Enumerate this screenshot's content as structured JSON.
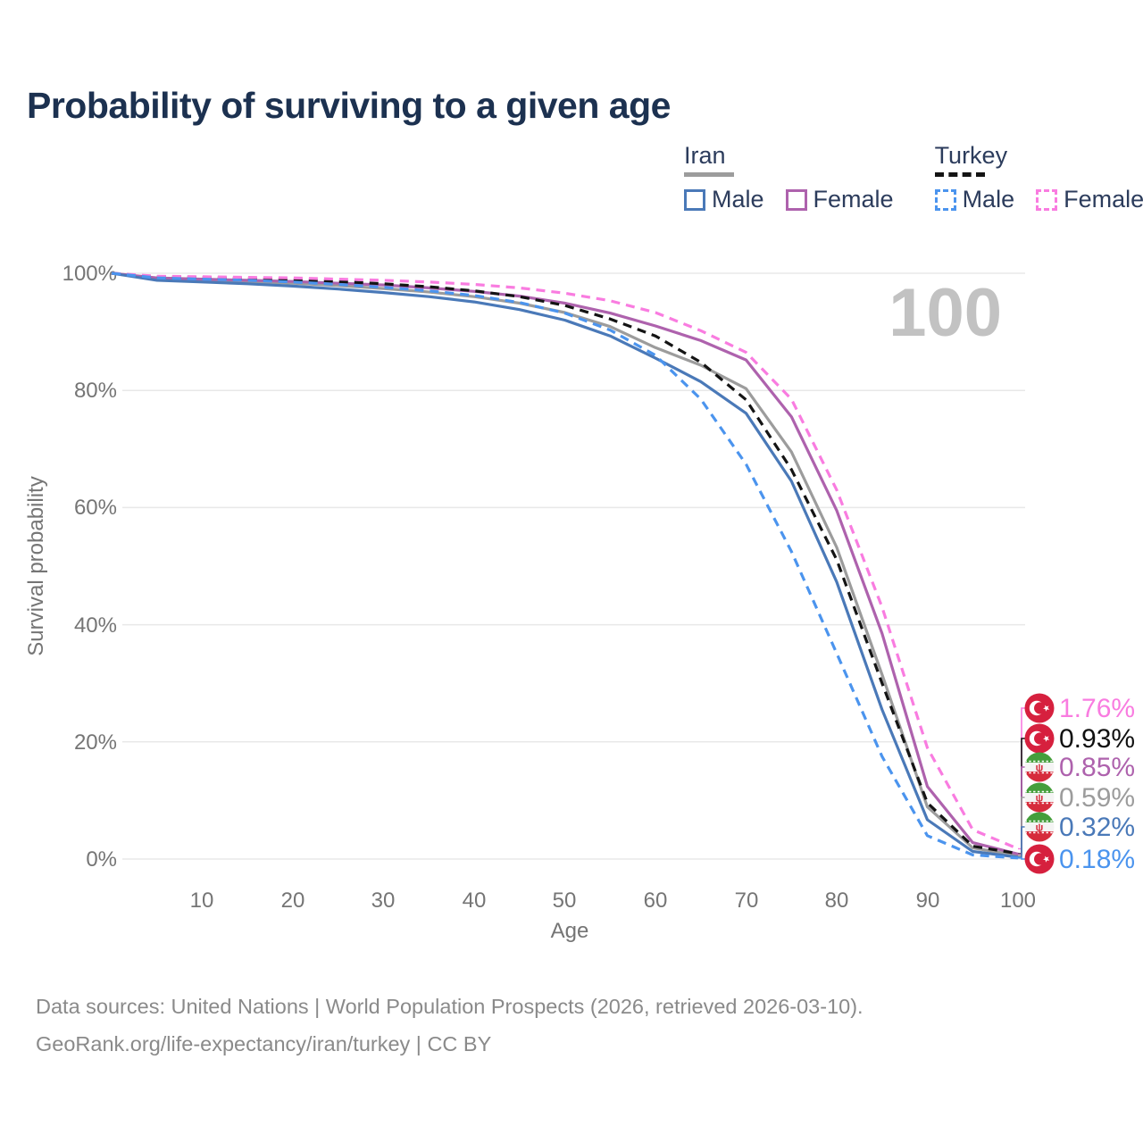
{
  "title": "Probability of surviving to a given age",
  "watermark_age": "100",
  "legend": {
    "groups": [
      {
        "country": "Iran",
        "line_style": "solid",
        "line_color": "#9c9c9c",
        "items": [
          {
            "label": "Male",
            "color": "#4a79b8",
            "style": "solid"
          },
          {
            "label": "Female",
            "color": "#ae62ad",
            "style": "solid"
          }
        ]
      },
      {
        "country": "Turkey",
        "line_style": "dashed",
        "line_color": "#141414",
        "items": [
          {
            "label": "Male",
            "color": "#4b94ee",
            "style": "dashed"
          },
          {
            "label": "Female",
            "color": "#f97ce0",
            "style": "dashed"
          }
        ]
      }
    ]
  },
  "chart_data": {
    "type": "line",
    "title": "Probability of surviving to a given age",
    "xlabel": "Age",
    "ylabel": "Survival probability",
    "xlim": [
      0,
      100
    ],
    "ylim": [
      0,
      100
    ],
    "grid": true,
    "legend_position": "top-right",
    "hovered_age": "100",
    "x_tick_labels": [
      "10",
      "20",
      "30",
      "40",
      "50",
      "60",
      "70",
      "80",
      "90",
      "100"
    ],
    "y_tick_labels": [
      "100%",
      "80%",
      "60%",
      "40%",
      "20%",
      "0%"
    ],
    "x": [
      0,
      5,
      10,
      15,
      20,
      25,
      30,
      35,
      40,
      45,
      50,
      55,
      60,
      65,
      70,
      75,
      80,
      85,
      90,
      95,
      100
    ],
    "series": [
      {
        "name": "Turkey — Female",
        "country": "Turkey",
        "sex": "Female",
        "color": "#f97ce0",
        "dash": "dashed",
        "flag": "turkey",
        "end_label": "1.76%",
        "end_value": 1.76,
        "values": [
          100,
          99.5,
          99.4,
          99.3,
          99.2,
          99.0,
          98.8,
          98.5,
          98.1,
          97.5,
          96.6,
          95.3,
          93.3,
          90.2,
          86.5,
          78.5,
          63.0,
          43.0,
          19.0,
          5.0,
          1.76
        ]
      },
      {
        "name": "Turkey — Both sexes",
        "country": "Turkey",
        "sex": "Both",
        "color": "#141414",
        "dash": "dashed",
        "flag": "turkey",
        "end_label": "0.93%",
        "end_value": 0.93,
        "values": [
          100,
          99.4,
          99.3,
          99.1,
          98.9,
          98.6,
          98.2,
          97.7,
          97.0,
          96.0,
          94.5,
          92.2,
          89.3,
          84.8,
          78.4,
          66.5,
          51.1,
          30.0,
          9.6,
          2.2,
          0.93
        ]
      },
      {
        "name": "Iran — Female",
        "country": "Iran",
        "sex": "Female",
        "color": "#ae62ad",
        "dash": "solid",
        "flag": "iran",
        "end_label": "0.85%",
        "end_value": 0.85,
        "values": [
          100,
          99.2,
          99.0,
          98.8,
          98.6,
          98.3,
          98.0,
          97.5,
          96.9,
          96.1,
          94.9,
          93.2,
          91.0,
          88.5,
          85.2,
          75.5,
          59.5,
          38.5,
          12.4,
          2.8,
          0.85
        ]
      },
      {
        "name": "Iran — Both sexes",
        "country": "Iran",
        "sex": "Both",
        "color": "#9c9c9c",
        "dash": "solid",
        "flag": "iran",
        "end_label": "0.59%",
        "end_value": 0.59,
        "values": [
          100,
          99.0,
          98.8,
          98.6,
          98.3,
          97.9,
          97.4,
          96.8,
          96.0,
          94.9,
          93.3,
          90.9,
          87.3,
          84.3,
          80.3,
          69.5,
          53.2,
          31.5,
          8.9,
          1.9,
          0.59
        ]
      },
      {
        "name": "Iran — Male",
        "country": "Iran",
        "sex": "Male",
        "color": "#4a79b8",
        "dash": "solid",
        "flag": "iran",
        "end_label": "0.32%",
        "end_value": 0.32,
        "values": [
          100,
          98.8,
          98.5,
          98.2,
          97.8,
          97.3,
          96.7,
          96.0,
          95.1,
          93.8,
          92.0,
          89.3,
          85.5,
          81.5,
          76.1,
          64.5,
          47.3,
          25.5,
          6.7,
          1.3,
          0.32
        ]
      },
      {
        "name": "Turkey — Male",
        "country": "Turkey",
        "sex": "Male",
        "color": "#4b94ee",
        "dash": "dashed",
        "flag": "turkey",
        "end_label": "0.18%",
        "end_value": 0.18,
        "values": [
          100,
          99.2,
          99.0,
          98.8,
          98.5,
          98.1,
          97.6,
          97.0,
          96.2,
          95.0,
          93.2,
          90.3,
          86.0,
          78.5,
          67.4,
          52.5,
          35.1,
          17.5,
          4.0,
          0.7,
          0.18
        ]
      }
    ]
  },
  "footer": {
    "line1": "Data sources: United Nations | World Population Prospects (2026, retrieved 2026-03-10).",
    "line2": "GeoRank.org/life-expectancy/iran/turkey | CC BY"
  }
}
